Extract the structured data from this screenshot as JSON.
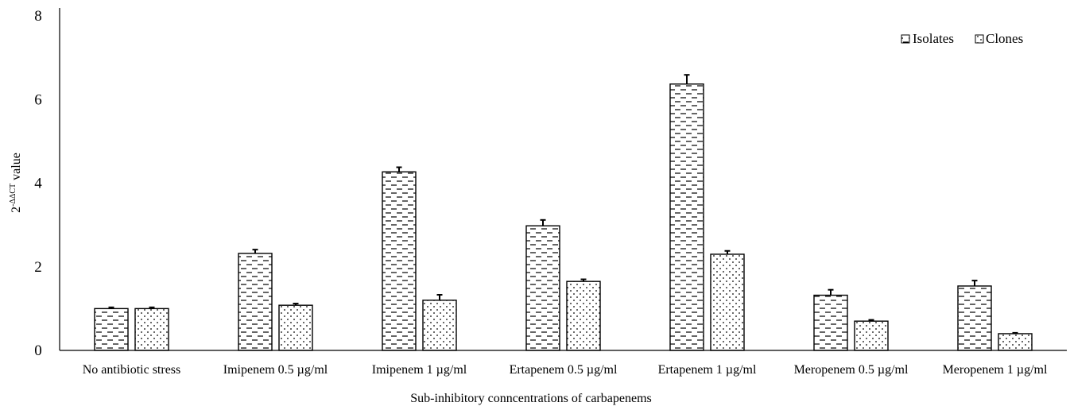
{
  "chart_data": {
    "type": "bar",
    "categories": [
      "No antibiotic stress",
      "Imipenem 0.5 µg/ml",
      "Imipenem 1 µg/ml",
      "Ertapenem 0.5 µg/ml",
      "Ertapenem 1 µg/ml",
      "Meropenem 0.5 µg/ml",
      "Meropenem 1 µg/ml"
    ],
    "series": [
      {
        "name": "Isolates",
        "pattern": "dashes",
        "values": [
          1.0,
          2.32,
          4.27,
          2.98,
          6.37,
          1.32,
          1.54
        ],
        "errors": [
          0.03,
          0.09,
          0.11,
          0.14,
          0.22,
          0.13,
          0.13
        ]
      },
      {
        "name": "Clones",
        "pattern": "dots",
        "values": [
          1.0,
          1.08,
          1.2,
          1.65,
          2.3,
          0.7,
          0.4
        ],
        "errors": [
          0.03,
          0.04,
          0.13,
          0.05,
          0.08,
          0.03,
          0.02
        ]
      }
    ],
    "yticks": [
      0,
      2,
      4,
      6,
      8
    ],
    "ylim": [
      0,
      8
    ],
    "ylabel_base": "2",
    "ylabel_sup": "-ΔΔCT",
    "ylabel_rest": " value",
    "xlabel": "Sub-inhibitory conncentrations of carbapenems",
    "legend_position": "top-right",
    "grid": false
  }
}
